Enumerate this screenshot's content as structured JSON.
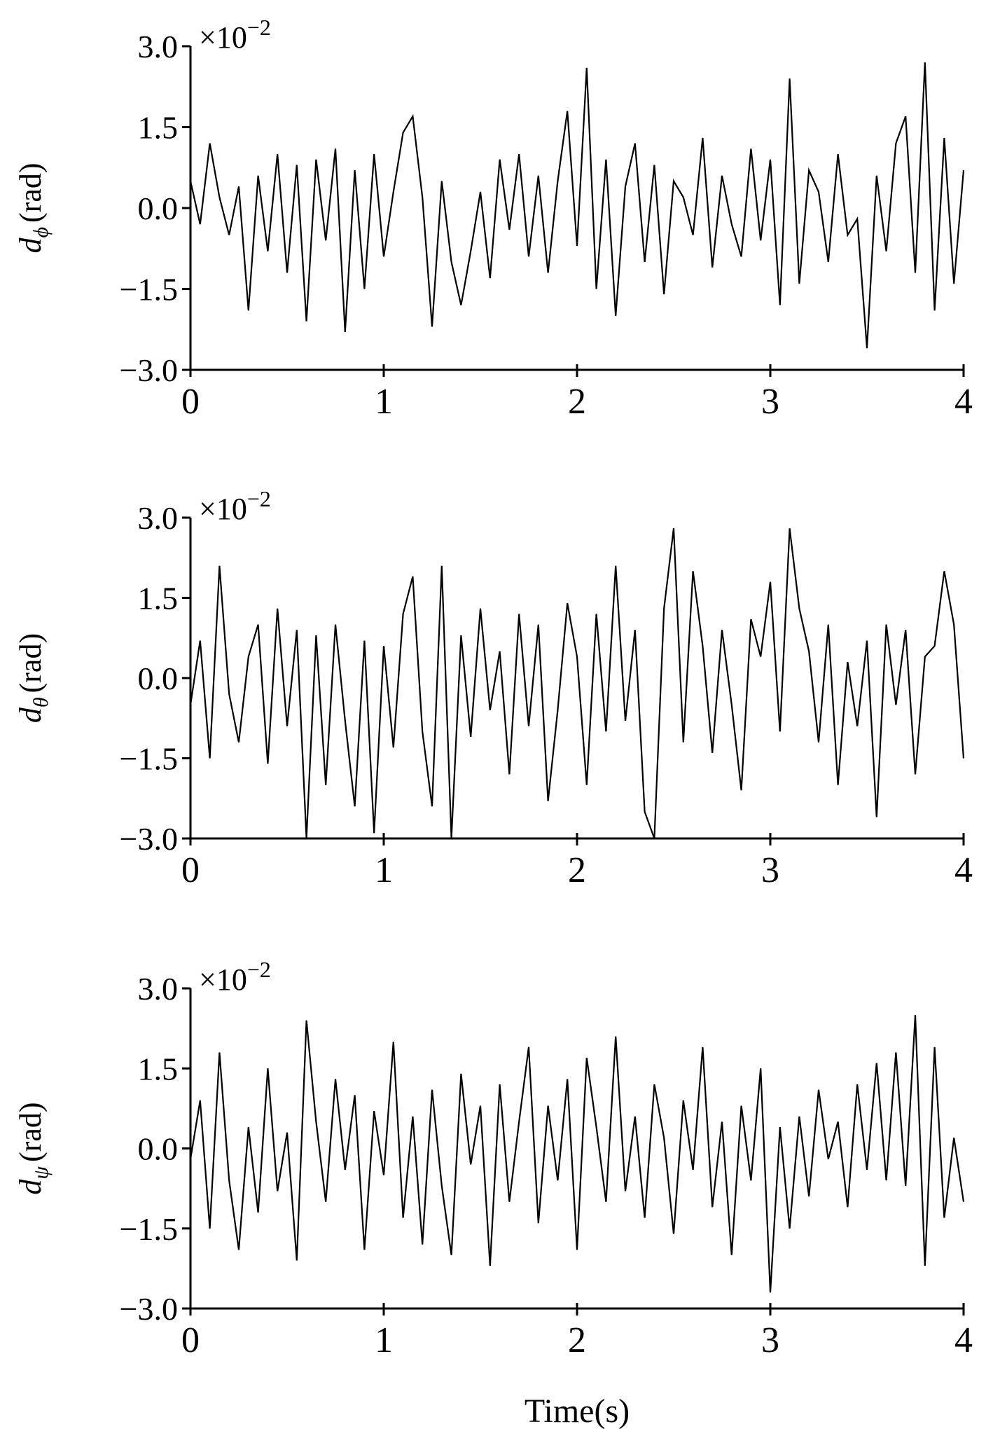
{
  "chart_data": [
    {
      "type": "line",
      "color": "#000000",
      "ylabel": {
        "symbol": "d",
        "subscript": "ϕ",
        "unit": "(rad)"
      },
      "multiplier": {
        "base": "×10",
        "exponent": "−2"
      },
      "x": [
        0,
        0.05,
        0.1,
        0.15,
        0.2,
        0.25,
        0.3,
        0.35,
        0.4,
        0.45,
        0.5,
        0.55,
        0.6,
        0.65,
        0.7,
        0.75,
        0.8,
        0.85,
        0.9,
        0.95,
        1,
        1.05,
        1.1,
        1.15,
        1.2,
        1.25,
        1.3,
        1.35,
        1.4,
        1.45,
        1.5,
        1.55,
        1.6,
        1.65,
        1.7,
        1.75,
        1.8,
        1.85,
        1.9,
        1.95,
        2,
        2.05,
        2.1,
        2.15,
        2.2,
        2.25,
        2.3,
        2.35,
        2.4,
        2.45,
        2.5,
        2.55,
        2.6,
        2.65,
        2.7,
        2.75,
        2.8,
        2.85,
        2.9,
        2.95,
        3,
        3.05,
        3.1,
        3.15,
        3.2,
        3.25,
        3.3,
        3.35,
        3.4,
        3.45,
        3.5,
        3.55,
        3.6,
        3.65,
        3.7,
        3.75,
        3.8,
        3.85,
        3.9,
        3.95,
        4
      ],
      "values": [
        0.5,
        -0.3,
        1.2,
        0.2,
        -0.5,
        0.4,
        -1.9,
        0.6,
        -0.8,
        1.0,
        -1.2,
        0.8,
        -2.1,
        0.9,
        -0.6,
        1.1,
        -2.3,
        0.7,
        -1.5,
        1.0,
        -0.9,
        0.3,
        1.4,
        1.7,
        0.2,
        -2.2,
        0.5,
        -1.0,
        -1.8,
        -0.8,
        0.3,
        -1.3,
        0.9,
        -0.4,
        1.0,
        -0.9,
        0.6,
        -1.2,
        0.5,
        1.8,
        -0.7,
        2.6,
        -1.5,
        0.9,
        -2.0,
        0.4,
        1.2,
        -1.0,
        0.8,
        -1.6,
        0.5,
        0.2,
        -0.5,
        1.3,
        -1.1,
        0.6,
        -0.3,
        -0.9,
        1.1,
        -0.6,
        0.9,
        -1.8,
        2.4,
        -1.4,
        0.7,
        0.3,
        -1.0,
        1.0,
        -0.5,
        -0.2,
        -2.6,
        0.6,
        -0.8,
        1.2,
        1.7,
        -1.2,
        2.7,
        -1.9,
        1.3,
        -1.4,
        0.7
      ],
      "xlim": [
        0,
        4
      ],
      "xticks": [
        0,
        1,
        2,
        3,
        4
      ],
      "ylim": [
        -3,
        3
      ],
      "yticks": [
        {
          "value": -3,
          "label": "−3.0"
        },
        {
          "value": -1.5,
          "label": "−1.5"
        },
        {
          "value": 0,
          "label": "0.0"
        },
        {
          "value": 1.5,
          "label": "1.5"
        },
        {
          "value": 3,
          "label": "3.0"
        }
      ]
    },
    {
      "type": "line",
      "color": "#000000",
      "ylabel": {
        "symbol": "d",
        "subscript": "θ",
        "unit": "(rad)"
      },
      "multiplier": {
        "base": "×10",
        "exponent": "−2"
      },
      "x": [
        0,
        0.05,
        0.1,
        0.15,
        0.2,
        0.25,
        0.3,
        0.35,
        0.4,
        0.45,
        0.5,
        0.55,
        0.6,
        0.65,
        0.7,
        0.75,
        0.8,
        0.85,
        0.9,
        0.95,
        1,
        1.05,
        1.1,
        1.15,
        1.2,
        1.25,
        1.3,
        1.35,
        1.4,
        1.45,
        1.5,
        1.55,
        1.6,
        1.65,
        1.7,
        1.75,
        1.8,
        1.85,
        1.9,
        1.95,
        2,
        2.05,
        2.1,
        2.15,
        2.2,
        2.25,
        2.3,
        2.35,
        2.4,
        2.45,
        2.5,
        2.55,
        2.6,
        2.65,
        2.7,
        2.75,
        2.8,
        2.85,
        2.9,
        2.95,
        3,
        3.05,
        3.1,
        3.15,
        3.2,
        3.25,
        3.3,
        3.35,
        3.4,
        3.45,
        3.5,
        3.55,
        3.6,
        3.65,
        3.7,
        3.75,
        3.8,
        3.85,
        3.9,
        3.95,
        4
      ],
      "values": [
        -0.5,
        0.7,
        -1.5,
        2.1,
        -0.3,
        -1.2,
        0.4,
        1.0,
        -1.6,
        1.3,
        -0.9,
        0.9,
        -3.0,
        0.8,
        -2.0,
        1.0,
        -0.8,
        -2.4,
        0.7,
        -2.9,
        0.6,
        -1.3,
        1.2,
        1.9,
        -1.0,
        -2.4,
        2.1,
        -3.0,
        0.8,
        -1.1,
        1.3,
        -0.6,
        0.5,
        -1.8,
        1.2,
        -0.9,
        1.0,
        -2.3,
        -0.6,
        1.4,
        0.4,
        -2.0,
        1.2,
        -1.0,
        2.1,
        -0.8,
        0.9,
        -2.5,
        -3.0,
        1.3,
        2.8,
        -1.2,
        2.0,
        0.6,
        -1.4,
        0.9,
        -0.5,
        -2.1,
        1.1,
        0.4,
        1.8,
        -1.0,
        2.8,
        1.3,
        0.5,
        -1.2,
        1.0,
        -2.0,
        0.3,
        -0.9,
        0.7,
        -2.6,
        1.0,
        -0.5,
        0.9,
        -1.8,
        0.4,
        0.6,
        2.0,
        1.0,
        -1.5
      ],
      "xlim": [
        0,
        4
      ],
      "xticks": [
        0,
        1,
        2,
        3,
        4
      ],
      "ylim": [
        -3,
        3
      ],
      "yticks": [
        {
          "value": -3,
          "label": "−3.0"
        },
        {
          "value": -1.5,
          "label": "−1.5"
        },
        {
          "value": 0,
          "label": "0.0"
        },
        {
          "value": 1.5,
          "label": "1.5"
        },
        {
          "value": 3,
          "label": "3.0"
        }
      ]
    },
    {
      "type": "line",
      "color": "#000000",
      "ylabel": {
        "symbol": "d",
        "subscript": "ψ",
        "unit": "(rad)"
      },
      "multiplier": {
        "base": "×10",
        "exponent": "−2"
      },
      "xlabel": "Time(s)",
      "x": [
        0,
        0.05,
        0.1,
        0.15,
        0.2,
        0.25,
        0.3,
        0.35,
        0.4,
        0.45,
        0.5,
        0.55,
        0.6,
        0.65,
        0.7,
        0.75,
        0.8,
        0.85,
        0.9,
        0.95,
        1,
        1.05,
        1.1,
        1.15,
        1.2,
        1.25,
        1.3,
        1.35,
        1.4,
        1.45,
        1.5,
        1.55,
        1.6,
        1.65,
        1.7,
        1.75,
        1.8,
        1.85,
        1.9,
        1.95,
        2,
        2.05,
        2.1,
        2.15,
        2.2,
        2.25,
        2.3,
        2.35,
        2.4,
        2.45,
        2.5,
        2.55,
        2.6,
        2.65,
        2.7,
        2.75,
        2.8,
        2.85,
        2.9,
        2.95,
        3,
        3.05,
        3.1,
        3.15,
        3.2,
        3.25,
        3.3,
        3.35,
        3.4,
        3.45,
        3.5,
        3.55,
        3.6,
        3.65,
        3.7,
        3.75,
        3.8,
        3.85,
        3.9,
        3.95,
        4
      ],
      "values": [
        -0.2,
        0.9,
        -1.5,
        1.8,
        -0.6,
        -1.9,
        0.4,
        -1.2,
        1.5,
        -0.8,
        0.3,
        -2.1,
        2.4,
        0.5,
        -1.0,
        1.3,
        -0.4,
        1.0,
        -1.9,
        0.7,
        -0.5,
        2.0,
        -1.3,
        0.6,
        -1.8,
        1.1,
        -0.7,
        -2.0,
        1.4,
        -0.3,
        0.8,
        -2.2,
        1.2,
        -1.0,
        0.5,
        1.9,
        -1.4,
        0.8,
        -0.6,
        1.3,
        -1.9,
        1.7,
        0.4,
        -1.0,
        2.1,
        -0.8,
        0.6,
        -1.3,
        1.2,
        0.2,
        -1.6,
        0.9,
        -0.4,
        1.9,
        -1.1,
        0.5,
        -2.0,
        0.8,
        -0.6,
        1.5,
        -2.7,
        0.4,
        -1.5,
        0.6,
        -0.9,
        1.1,
        -0.2,
        0.5,
        -1.1,
        1.2,
        -0.4,
        1.6,
        -0.6,
        1.8,
        -0.7,
        2.5,
        -2.2,
        1.9,
        -1.3,
        0.2,
        -1.0
      ],
      "xlim": [
        0,
        4
      ],
      "xticks": [
        0,
        1,
        2,
        3,
        4
      ],
      "ylim": [
        -3,
        3
      ],
      "yticks": [
        {
          "value": -3,
          "label": "−3.0"
        },
        {
          "value": -1.5,
          "label": "−1.5"
        },
        {
          "value": 0,
          "label": "0.0"
        },
        {
          "value": 1.5,
          "label": "1.5"
        },
        {
          "value": 3,
          "label": "3.0"
        }
      ]
    }
  ]
}
